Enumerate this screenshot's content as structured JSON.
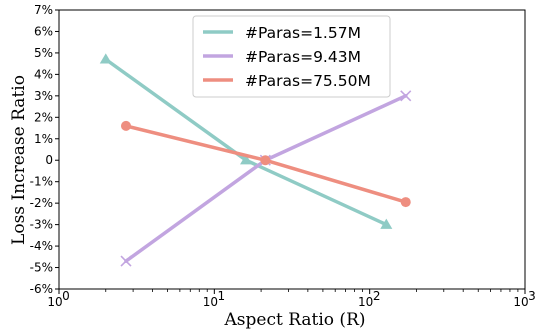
{
  "chart_data": {
    "type": "line",
    "xlabel": "Aspect Ratio (R)",
    "ylabel": "Loss Increase Ratio",
    "x_scale": "log",
    "xlim": [
      1,
      1000
    ],
    "ylim": [
      -6,
      7
    ],
    "x_ticks": [
      1,
      10,
      100,
      1000
    ],
    "x_tick_labels": [
      "10",
      "10",
      "10",
      "10"
    ],
    "x_tick_exponents": [
      "0",
      "1",
      "2",
      "3"
    ],
    "y_ticks": [
      -6,
      -5,
      -4,
      -3,
      -2,
      -1,
      0,
      1,
      2,
      3,
      4,
      5,
      6,
      7
    ],
    "y_tick_labels": [
      "-6%",
      "-5%",
      "-4%",
      "-3%",
      "-2%",
      "-1%",
      "0",
      "1%",
      "2%",
      "3%",
      "4%",
      "5%",
      "6%",
      "7%"
    ],
    "legend_position": "top-center",
    "grid": false,
    "series": [
      {
        "name": "#Paras=1.57M",
        "color": "#8fcbc5",
        "marker": "triangle",
        "x": [
          2,
          16,
          128
        ],
        "y": [
          4.7,
          0.0,
          -3.0
        ]
      },
      {
        "name": "#Paras=9.43M",
        "color": "#c2a5e0",
        "marker": "x",
        "x": [
          2.7,
          21.3,
          170.7
        ],
        "y": [
          -4.7,
          0.0,
          3.0
        ]
      },
      {
        "name": "#Paras=75.50M",
        "color": "#ee8e80",
        "marker": "circle",
        "x": [
          2.7,
          21.3,
          170.7
        ],
        "y": [
          1.6,
          0.0,
          -1.95
        ]
      }
    ]
  }
}
